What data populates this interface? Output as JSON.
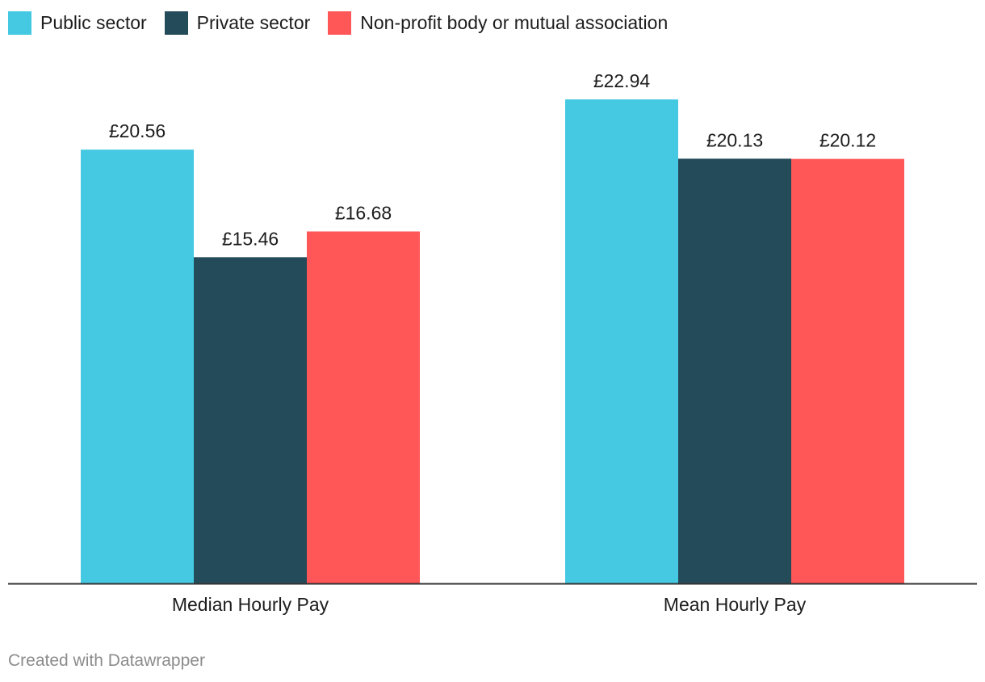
{
  "chart_data": {
    "type": "bar",
    "categories": [
      "Median Hourly Pay",
      "Mean Hourly Pay"
    ],
    "series": [
      {
        "name": "Public sector",
        "values": [
          20.56,
          22.94
        ],
        "labels": [
          "£20.56",
          "£22.94"
        ],
        "color": "#45c9e3"
      },
      {
        "name": "Private sector",
        "values": [
          15.46,
          20.13
        ],
        "labels": [
          "£15.46",
          "£20.13"
        ],
        "color": "#244b5a"
      },
      {
        "name": "Non-profit body or mutual association",
        "values": [
          16.68,
          20.12
        ],
        "labels": [
          "£16.68",
          "£20.12"
        ],
        "color": "#ff5757"
      }
    ],
    "ylim": [
      0,
      22.94
    ],
    "grid": false,
    "legend_position": "top-left",
    "value_labels": "above-bars"
  },
  "footer": {
    "credit": "Created with Datawrapper"
  }
}
